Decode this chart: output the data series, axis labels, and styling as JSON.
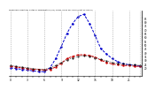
{
  "title": "Milwaukee Weather Outdoor Temperature (vs) THSW Index per Hour (Last 24 Hours)",
  "hours": [
    0,
    1,
    2,
    3,
    4,
    5,
    6,
    7,
    8,
    9,
    10,
    11,
    12,
    13,
    14,
    15,
    16,
    17,
    18,
    19,
    20,
    21,
    22,
    23
  ],
  "temp": [
    22,
    21,
    20,
    19,
    18,
    18,
    17,
    18,
    21,
    26,
    32,
    35,
    37,
    37,
    36,
    34,
    30,
    27,
    25,
    24,
    23,
    23,
    22,
    22
  ],
  "thsw": [
    20,
    19,
    18,
    17,
    16,
    15,
    15,
    20,
    32,
    48,
    65,
    78,
    87,
    90,
    78,
    62,
    45,
    38,
    32,
    28,
    25,
    24,
    23,
    22
  ],
  "black": [
    23,
    22,
    21,
    20,
    19,
    18,
    18,
    20,
    23,
    27,
    30,
    33,
    35,
    36,
    35,
    33,
    31,
    29,
    27,
    26,
    25,
    24,
    24,
    23
  ],
  "temp_color": "#cc0000",
  "thsw_color": "#0000cc",
  "black_color": "#000000",
  "bg_color": "#ffffff",
  "ylim": [
    10,
    95
  ],
  "yticks_right": [
    20,
    25,
    30,
    35,
    40,
    45,
    50,
    55,
    60,
    65,
    70,
    75,
    80,
    85
  ],
  "grid_color": "#999999",
  "grid_hours": [
    0,
    3,
    6,
    9,
    12,
    15,
    18,
    21,
    23
  ]
}
